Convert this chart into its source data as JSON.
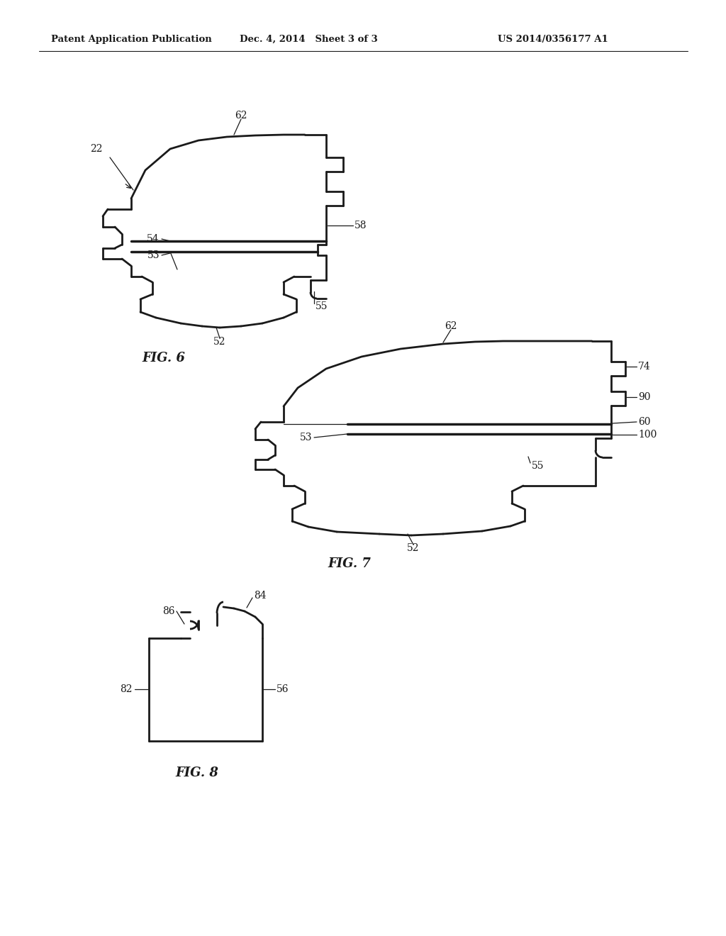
{
  "background_color": "#ffffff",
  "line_color": "#1a1a1a",
  "line_width": 1.8,
  "header_left": "Patent Application Publication",
  "header_mid": "Dec. 4, 2014   Sheet 3 of 3",
  "header_right": "US 2014/0356177 A1",
  "fig6_label": "FIG. 6",
  "fig7_label": "FIG. 7",
  "fig8_label": "FIG. 8"
}
